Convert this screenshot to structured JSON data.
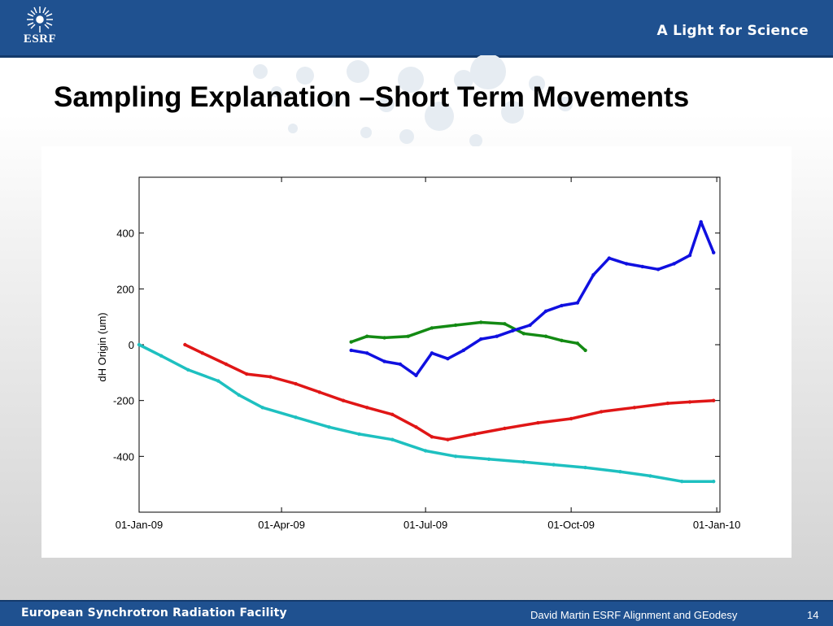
{
  "header": {
    "logo_text": "ESRF",
    "tagline": "A Light for Science"
  },
  "slide": {
    "title": "Sampling Explanation –Short Term Movements"
  },
  "footer": {
    "organization": "European Synchrotron Radiation Facility",
    "credit": "David Martin ESRF Alignment and GEodesy",
    "page_number": "14"
  },
  "colors": {
    "header_blue": "#1f5190",
    "series_blue": "#1010e0",
    "series_green": "#138a13",
    "series_red": "#e01616",
    "series_cyan": "#1ec0c0"
  },
  "chart_data": {
    "type": "scatter",
    "title": "",
    "xlabel": "",
    "ylabel": "dH Origin (um)",
    "x_axis_type": "date",
    "xlim": [
      "2009-01-01",
      "2010-01-03"
    ],
    "ylim": [
      -600,
      600
    ],
    "x_ticks": [
      "01-Jan-09",
      "01-Apr-09",
      "01-Jul-09",
      "01-Oct-09",
      "01-Jan-10"
    ],
    "y_ticks": [
      400,
      200,
      0,
      -200,
      -400
    ],
    "grid": false,
    "legend": "none",
    "series": [
      {
        "color": "#e01616",
        "x": [
          "2009-01-30",
          "2009-02-10",
          "2009-02-25",
          "2009-03-10",
          "2009-03-25",
          "2009-04-10",
          "2009-04-25",
          "2009-05-10",
          "2009-05-25",
          "2009-06-10",
          "2009-06-25",
          "2009-07-05",
          "2009-07-15",
          "2009-08-01",
          "2009-08-20",
          "2009-09-10",
          "2009-10-01",
          "2009-10-20",
          "2009-11-10",
          "2009-12-01",
          "2009-12-15",
          "2009-12-30"
        ],
        "y": [
          0,
          -30,
          -70,
          -105,
          -115,
          -140,
          -170,
          -200,
          -225,
          -250,
          -295,
          -330,
          -340,
          -320,
          -300,
          -280,
          -265,
          -240,
          -225,
          -210,
          -205,
          -200
        ]
      },
      {
        "color": "#1ec0c0",
        "x": [
          "2009-01-01",
          "2009-01-15",
          "2009-02-01",
          "2009-02-20",
          "2009-03-05",
          "2009-03-20",
          "2009-04-10",
          "2009-05-01",
          "2009-05-20",
          "2009-06-10",
          "2009-07-01",
          "2009-07-20",
          "2009-08-10",
          "2009-09-01",
          "2009-09-20",
          "2009-10-10",
          "2009-11-01",
          "2009-11-20",
          "2009-12-10",
          "2009-12-30"
        ],
        "y": [
          0,
          -40,
          -90,
          -130,
          -180,
          -225,
          -260,
          -295,
          -320,
          -340,
          -380,
          -400,
          -410,
          -420,
          -430,
          -440,
          -455,
          -470,
          -490,
          -490
        ]
      },
      {
        "color": "#138a13",
        "x": [
          "2009-05-15",
          "2009-05-25",
          "2009-06-05",
          "2009-06-20",
          "2009-07-05",
          "2009-07-20",
          "2009-08-05",
          "2009-08-20",
          "2009-09-01",
          "2009-09-15",
          "2009-09-25",
          "2009-10-05",
          "2009-10-10"
        ],
        "y": [
          10,
          30,
          25,
          30,
          60,
          70,
          80,
          75,
          40,
          30,
          15,
          5,
          -20
        ]
      },
      {
        "color": "#1010e0",
        "x": [
          "2009-05-15",
          "2009-05-25",
          "2009-06-05",
          "2009-06-15",
          "2009-06-25",
          "2009-07-05",
          "2009-07-15",
          "2009-07-25",
          "2009-08-05",
          "2009-08-15",
          "2009-08-25",
          "2009-09-05",
          "2009-09-15",
          "2009-09-25",
          "2009-10-05",
          "2009-10-15",
          "2009-10-25",
          "2009-11-05",
          "2009-11-15",
          "2009-11-25",
          "2009-12-05",
          "2009-12-15",
          "2009-12-22",
          "2009-12-30"
        ],
        "y": [
          -20,
          -30,
          -60,
          -70,
          -110,
          -30,
          -50,
          -20,
          20,
          30,
          50,
          70,
          120,
          140,
          150,
          250,
          310,
          290,
          280,
          270,
          290,
          320,
          440,
          330
        ]
      }
    ]
  }
}
